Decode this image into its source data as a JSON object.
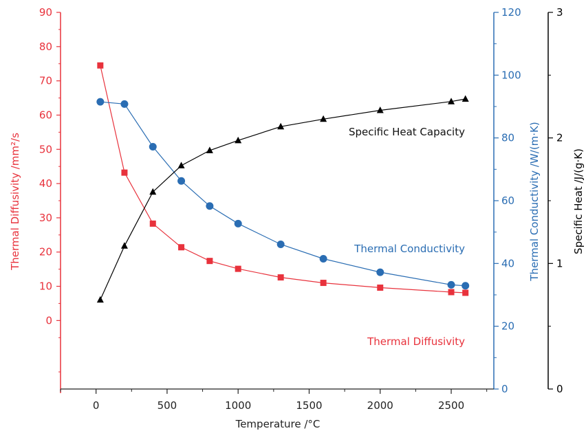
{
  "chart_data": {
    "type": "line",
    "xlabel": "Temperature /°C",
    "xlim": [
      -250,
      2800
    ],
    "xticks": [
      0,
      500,
      1000,
      1500,
      2000,
      2500
    ],
    "y_axes": [
      {
        "id": "diffusivity",
        "label": "Thermal Diffusivity /mm²/s",
        "color": "#e8323c",
        "range": [
          -20,
          90
        ],
        "ticks": [
          0,
          10,
          20,
          30,
          40,
          50,
          60,
          70,
          80,
          90
        ]
      },
      {
        "id": "conductivity",
        "label": "Thermal Conductivity /W/(m·K)",
        "color": "#2a6db3",
        "range": [
          0,
          120
        ],
        "ticks": [
          0,
          20,
          40,
          60,
          80,
          100,
          120
        ]
      },
      {
        "id": "specific_heat",
        "label": "Specific Heat /J/(g·K)",
        "color": "#000000",
        "range": [
          0,
          3
        ],
        "ticks": [
          0,
          1,
          2,
          3
        ]
      }
    ],
    "series": [
      {
        "name": "Thermal Diffusivity",
        "axis": "diffusivity",
        "color": "#e8323c",
        "marker": "square",
        "x": [
          30,
          200,
          400,
          600,
          800,
          1000,
          1300,
          1600,
          2000,
          2500,
          2600
        ],
        "y": [
          74.5,
          43.2,
          28.3,
          21.4,
          17.4,
          15.1,
          12.6,
          11.0,
          9.6,
          8.3,
          8.1
        ]
      },
      {
        "name": "Thermal Conductivity",
        "axis": "conductivity",
        "color": "#2a6db3",
        "marker": "circle",
        "x": [
          30,
          200,
          400,
          600,
          800,
          1000,
          1300,
          1600,
          2000,
          2500,
          2600
        ],
        "y": [
          91.5,
          90.8,
          77.2,
          66.3,
          58.3,
          52.7,
          46.1,
          41.5,
          37.2,
          33.2,
          32.9
        ]
      },
      {
        "name": "Specific Heat Capacity",
        "axis": "specific_heat",
        "color": "#000000",
        "marker": "triangle",
        "x": [
          30,
          200,
          400,
          600,
          800,
          1000,
          1300,
          1600,
          2000,
          2500,
          2600
        ],
        "y": [
          0.71,
          1.14,
          1.57,
          1.78,
          1.9,
          1.98,
          2.09,
          2.15,
          2.22,
          2.29,
          2.31
        ]
      }
    ],
    "annotations": [
      {
        "text": "Specific Heat Capacity",
        "series": "Specific Heat Capacity"
      },
      {
        "text": "Thermal Conductivity",
        "series": "Thermal Conductivity"
      },
      {
        "text": "Thermal Diffusivity",
        "series": "Thermal Diffusivity"
      }
    ],
    "grid": false,
    "legend": "none"
  }
}
